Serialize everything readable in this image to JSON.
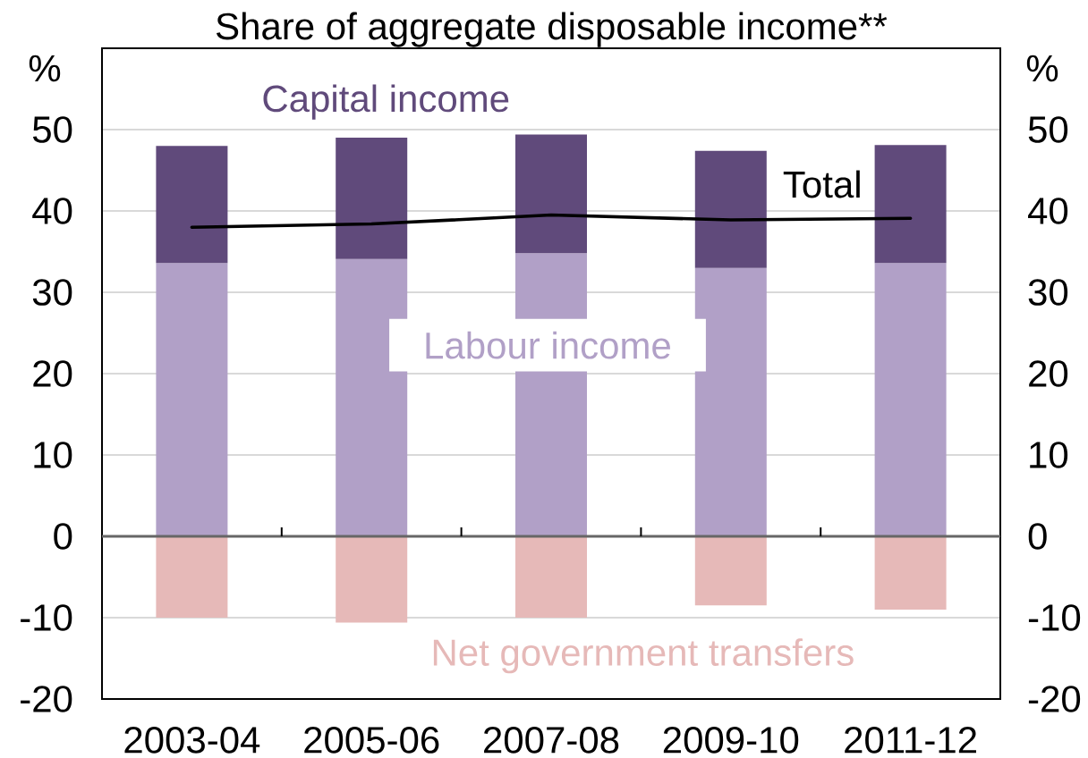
{
  "chart_data": {
    "type": "bar",
    "subtitle": "Share of aggregate disposable income**",
    "ylabel": "%",
    "y2label": "%",
    "categories": [
      "2003-04",
      "2005-06",
      "2007-08",
      "2009-10",
      "2011-12"
    ],
    "stacked": true,
    "series": [
      {
        "name": "Labour income",
        "color": "#b1a0c7",
        "values": [
          33.6,
          34.1,
          34.8,
          33.0,
          33.6
        ]
      },
      {
        "name": "Capital income",
        "color": "#604a7b",
        "values": [
          14.4,
          14.9,
          14.6,
          14.4,
          14.5
        ]
      },
      {
        "name": "Net government transfers",
        "color": "#e6b9b8",
        "values": [
          -10.0,
          -10.6,
          -10.0,
          -8.5,
          -9.0
        ]
      },
      {
        "name": "Total",
        "type": "line",
        "color": "#000000",
        "values": [
          38.0,
          38.4,
          39.5,
          38.9,
          39.1
        ]
      }
    ],
    "ylim": [
      -20,
      60
    ],
    "yticks": [
      -20,
      -10,
      0,
      10,
      20,
      30,
      40,
      50
    ],
    "y2lim": [
      -20,
      60
    ],
    "y2ticks": [
      -20,
      -10,
      0,
      10,
      20,
      30,
      40,
      50
    ],
    "grid": "y"
  }
}
